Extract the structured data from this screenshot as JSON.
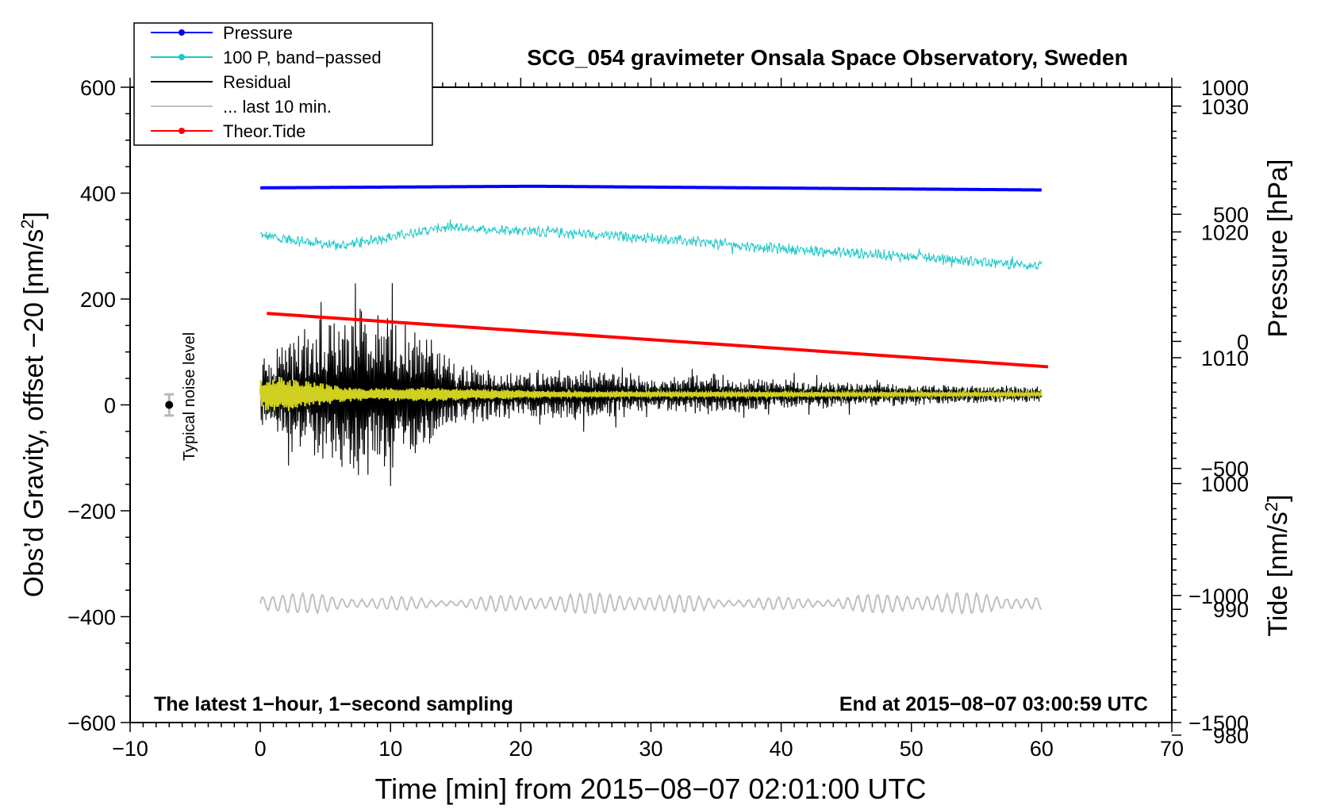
{
  "chart_data": {
    "type": "line",
    "title": "SCG_054 gravimeter Onsala Space Observatory, Sweden",
    "xlabel": "Time [min] from 2015−08−07 02:01:00 UTC",
    "ylabel_left": {
      "text": "Obs’d Gravity, offset −20 [nm/s",
      "sup": "2",
      "end": "]"
    },
    "ylabel_right_pressure": "Pressure [hPa]",
    "ylabel_right_tide": {
      "text": "Tide [nm/s",
      "sup": "2",
      "end": "]"
    },
    "xlim": [
      -10,
      70
    ],
    "ylim": [
      -600,
      600
    ],
    "pressure_ylim": [
      981.0,
      1031.5
    ],
    "tide_ylim": [
      -1500,
      1000
    ],
    "x_ticks": [
      {
        "v": -10,
        "t": "−10"
      },
      {
        "v": 0,
        "t": "0"
      },
      {
        "v": 10,
        "t": "10"
      },
      {
        "v": 20,
        "t": "20"
      },
      {
        "v": 30,
        "t": "30"
      },
      {
        "v": 40,
        "t": "40"
      },
      {
        "v": 50,
        "t": "50"
      },
      {
        "v": 60,
        "t": "60"
      },
      {
        "v": 70,
        "t": "70"
      }
    ],
    "y_ticks": [
      {
        "v": 600,
        "t": "600"
      },
      {
        "v": 400,
        "t": "400"
      },
      {
        "v": 200,
        "t": "200"
      },
      {
        "v": 0,
        "t": "0"
      },
      {
        "v": -200,
        "t": "−200"
      },
      {
        "v": -400,
        "t": "−400"
      },
      {
        "v": -600,
        "t": "−600"
      }
    ],
    "pressure_ticks": [
      {
        "v": 1030,
        "t": "1030"
      },
      {
        "v": 1020,
        "t": "1020"
      },
      {
        "v": 1010,
        "t": "1010"
      },
      {
        "v": 1000,
        "t": "1000"
      },
      {
        "v": 990,
        "t": "990"
      },
      {
        "v": 980,
        "t": "980"
      }
    ],
    "tide_ticks": [
      {
        "v": 1000,
        "t": "1000"
      },
      {
        "v": 500,
        "t": "500"
      },
      {
        "v": 0,
        "t": "0"
      },
      {
        "v": -500,
        "t": "−500"
      },
      {
        "v": -1000,
        "t": "−1000"
      },
      {
        "v": -1500,
        "t": "−1500"
      }
    ],
    "legend": [
      {
        "label": "Pressure",
        "color": "#0000ff",
        "marker": true
      },
      {
        "label": "100 P, band−passed",
        "color": "#20c8c8",
        "marker": true
      },
      {
        "label": "Residual",
        "color": "#000000",
        "marker": false
      },
      {
        "label": "... last 10 min.",
        "color": "#c0c0c0",
        "marker": false
      },
      {
        "label": "Theor.Tide",
        "color": "#ff0000",
        "marker": true
      }
    ],
    "annotations": {
      "bottom_left": "The latest 1−hour, 1−second sampling",
      "bottom_right": "End at 2015−08−07 03:00:59 UTC",
      "noise": "Typical noise level"
    },
    "noise_marker": {
      "x": -7,
      "y": 0,
      "err": 20
    },
    "series": [
      {
        "name": "Pressure",
        "color": "#0000ff",
        "x_range": [
          0,
          60
        ],
        "level_start": 410,
        "level_mid": 413,
        "level_end": 406
      },
      {
        "name": "100 P, band−passed",
        "color": "#20c8c8",
        "x_range": [
          0,
          60
        ],
        "trend": [
          [
            0,
            320
          ],
          [
            6,
            300
          ],
          [
            14,
            335
          ],
          [
            20,
            330
          ],
          [
            30,
            315
          ],
          [
            40,
            295
          ],
          [
            50,
            280
          ],
          [
            60,
            262
          ]
        ]
      },
      {
        "name": "Residual",
        "color": "#000000",
        "x_range": [
          0,
          60
        ],
        "center": 20,
        "envelope": [
          [
            0,
            70
          ],
          [
            2,
            110
          ],
          [
            5,
            130
          ],
          [
            7,
            180
          ],
          [
            10,
            150
          ],
          [
            13,
            120
          ],
          [
            15,
            60
          ],
          [
            20,
            45
          ],
          [
            25,
            55
          ],
          [
            30,
            35
          ],
          [
            35,
            40
          ],
          [
            40,
            30
          ],
          [
            50,
            22
          ],
          [
            60,
            15
          ]
        ]
      },
      {
        "name": "Residual smoothed",
        "color": "#d0d020",
        "x_range": [
          0,
          60
        ],
        "center": 20,
        "envelope": [
          [
            0,
            30
          ],
          [
            2,
            40
          ],
          [
            4,
            25
          ],
          [
            8,
            12
          ],
          [
            12,
            15
          ],
          [
            18,
            10
          ],
          [
            25,
            6
          ],
          [
            60,
            4
          ]
        ]
      },
      {
        "name": "Theor.Tide",
        "color": "#ff0000",
        "x_range": [
          0.5,
          60.5
        ],
        "values_tide": [
          110,
          -100
        ]
      },
      {
        "name": "... last 10 min.",
        "color": "#c0c0c0",
        "x_range": [
          0,
          60
        ],
        "center": -375,
        "amplitude": 18
      }
    ]
  }
}
